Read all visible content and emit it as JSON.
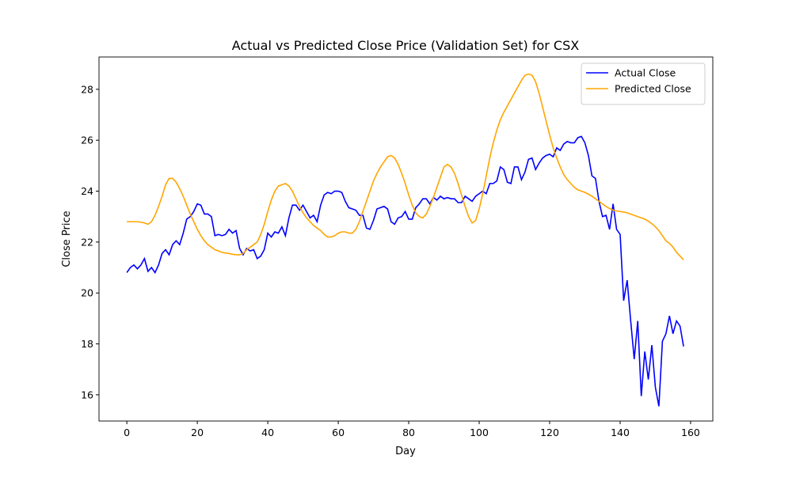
{
  "chart_data": {
    "type": "line",
    "title": "Actual vs Predicted Close Price (Validation Set) for CSX",
    "x_label": "Day",
    "y_label": "Close Price",
    "x": [
      0,
      1,
      2,
      3,
      4,
      5,
      6,
      7,
      8,
      9,
      10,
      11,
      12,
      13,
      14,
      15,
      16,
      17,
      18,
      19,
      20,
      21,
      22,
      23,
      24,
      25,
      26,
      27,
      28,
      29,
      30,
      31,
      32,
      33,
      34,
      35,
      36,
      37,
      38,
      39,
      40,
      41,
      42,
      43,
      44,
      45,
      46,
      47,
      48,
      49,
      50,
      51,
      52,
      53,
      54,
      55,
      56,
      57,
      58,
      59,
      60,
      61,
      62,
      63,
      64,
      65,
      66,
      67,
      68,
      69,
      70,
      71,
      72,
      73,
      74,
      75,
      76,
      77,
      78,
      79,
      80,
      81,
      82,
      83,
      84,
      85,
      86,
      87,
      88,
      89,
      90,
      91,
      92,
      93,
      94,
      95,
      96,
      97,
      98,
      99,
      100,
      101,
      102,
      103,
      104,
      105,
      106,
      107,
      108,
      109,
      110,
      111,
      112,
      113,
      114,
      115,
      116,
      117,
      118,
      119,
      120,
      121,
      122,
      123,
      124,
      125,
      126,
      127,
      128,
      129,
      130,
      131,
      132,
      133,
      134,
      135,
      136,
      137,
      138,
      139,
      140,
      141,
      142,
      143,
      144,
      145,
      146,
      147,
      148,
      149,
      150,
      151,
      152,
      153,
      154,
      155,
      156,
      157,
      158
    ],
    "series": [
      {
        "name": "Actual Close",
        "color": "#0000ff",
        "values": [
          20.8,
          21.0,
          21.1,
          20.95,
          21.1,
          21.35,
          20.85,
          21.0,
          20.8,
          21.1,
          21.55,
          21.7,
          21.5,
          21.9,
          22.05,
          21.9,
          22.35,
          22.9,
          23.0,
          23.2,
          23.5,
          23.45,
          23.1,
          23.1,
          23.0,
          22.25,
          22.3,
          22.25,
          22.3,
          22.5,
          22.35,
          22.45,
          21.75,
          21.5,
          21.75,
          21.65,
          21.7,
          21.35,
          21.45,
          21.7,
          22.35,
          22.2,
          22.4,
          22.35,
          22.6,
          22.25,
          22.95,
          23.45,
          23.45,
          23.25,
          23.45,
          23.2,
          22.95,
          23.05,
          22.8,
          23.45,
          23.85,
          23.95,
          23.9,
          24.0,
          24.0,
          23.95,
          23.6,
          23.35,
          23.3,
          23.25,
          23.05,
          23.05,
          22.55,
          22.5,
          22.85,
          23.3,
          23.35,
          23.4,
          23.3,
          22.8,
          22.7,
          22.95,
          23.0,
          23.2,
          22.9,
          22.9,
          23.35,
          23.5,
          23.7,
          23.7,
          23.5,
          23.75,
          23.65,
          23.8,
          23.7,
          23.75,
          23.7,
          23.7,
          23.55,
          23.55,
          23.8,
          23.7,
          23.6,
          23.8,
          23.9,
          24.0,
          23.9,
          24.3,
          24.3,
          24.4,
          24.95,
          24.85,
          24.35,
          24.3,
          24.95,
          24.95,
          24.45,
          24.75,
          25.25,
          25.3,
          24.85,
          25.1,
          25.3,
          25.4,
          25.45,
          25.35,
          25.7,
          25.6,
          25.85,
          25.95,
          25.9,
          25.9,
          26.1,
          26.15,
          25.9,
          25.4,
          24.6,
          24.5,
          23.6,
          23.0,
          23.05,
          22.5,
          23.5,
          22.5,
          22.3,
          19.7,
          20.5,
          18.9,
          17.4,
          18.9,
          15.95,
          17.7,
          16.6,
          17.95,
          16.3,
          15.55,
          18.1,
          18.4,
          19.1,
          18.4,
          18.9,
          18.7,
          17.9
        ]
      },
      {
        "name": "Predicted Close",
        "color": "#ffa500",
        "values": [
          22.8,
          22.8,
          22.8,
          22.8,
          22.78,
          22.75,
          22.7,
          22.8,
          23.05,
          23.4,
          23.8,
          24.25,
          24.5,
          24.5,
          24.35,
          24.1,
          23.8,
          23.45,
          23.1,
          22.8,
          22.5,
          22.25,
          22.05,
          21.9,
          21.8,
          21.7,
          21.65,
          21.6,
          21.57,
          21.55,
          21.52,
          21.5,
          21.5,
          21.55,
          21.7,
          21.8,
          21.9,
          22.0,
          22.3,
          22.7,
          23.2,
          23.65,
          24.0,
          24.2,
          24.25,
          24.3,
          24.2,
          24.0,
          23.7,
          23.4,
          23.15,
          22.95,
          22.8,
          22.65,
          22.55,
          22.45,
          22.3,
          22.2,
          22.2,
          22.25,
          22.35,
          22.4,
          22.4,
          22.35,
          22.35,
          22.5,
          22.8,
          23.2,
          23.6,
          24.0,
          24.4,
          24.7,
          24.95,
          25.15,
          25.35,
          25.4,
          25.3,
          25.05,
          24.7,
          24.3,
          23.85,
          23.45,
          23.15,
          23.0,
          22.95,
          23.1,
          23.4,
          23.75,
          24.15,
          24.55,
          24.95,
          25.05,
          24.95,
          24.7,
          24.3,
          23.85,
          23.4,
          23.0,
          22.75,
          22.85,
          23.3,
          23.9,
          24.6,
          25.3,
          25.9,
          26.4,
          26.8,
          27.1,
          27.35,
          27.6,
          27.85,
          28.1,
          28.35,
          28.55,
          28.6,
          28.55,
          28.3,
          27.85,
          27.3,
          26.75,
          26.2,
          25.7,
          25.3,
          24.95,
          24.65,
          24.45,
          24.3,
          24.15,
          24.05,
          24.0,
          23.95,
          23.88,
          23.8,
          23.7,
          23.6,
          23.5,
          23.4,
          23.32,
          23.25,
          23.22,
          23.2,
          23.18,
          23.15,
          23.1,
          23.05,
          23.0,
          22.95,
          22.9,
          22.82,
          22.72,
          22.6,
          22.45,
          22.25,
          22.05,
          21.95,
          21.8,
          21.6,
          21.45,
          21.3
        ]
      }
    ],
    "xlim": [
      -7.9,
      166.3
    ],
    "ylim": [
      14.97,
      29.27
    ],
    "xticks": [
      0,
      20,
      40,
      60,
      80,
      100,
      120,
      140,
      160
    ],
    "yticks": [
      16,
      18,
      20,
      22,
      24,
      26,
      28
    ],
    "legend": "upper right"
  }
}
